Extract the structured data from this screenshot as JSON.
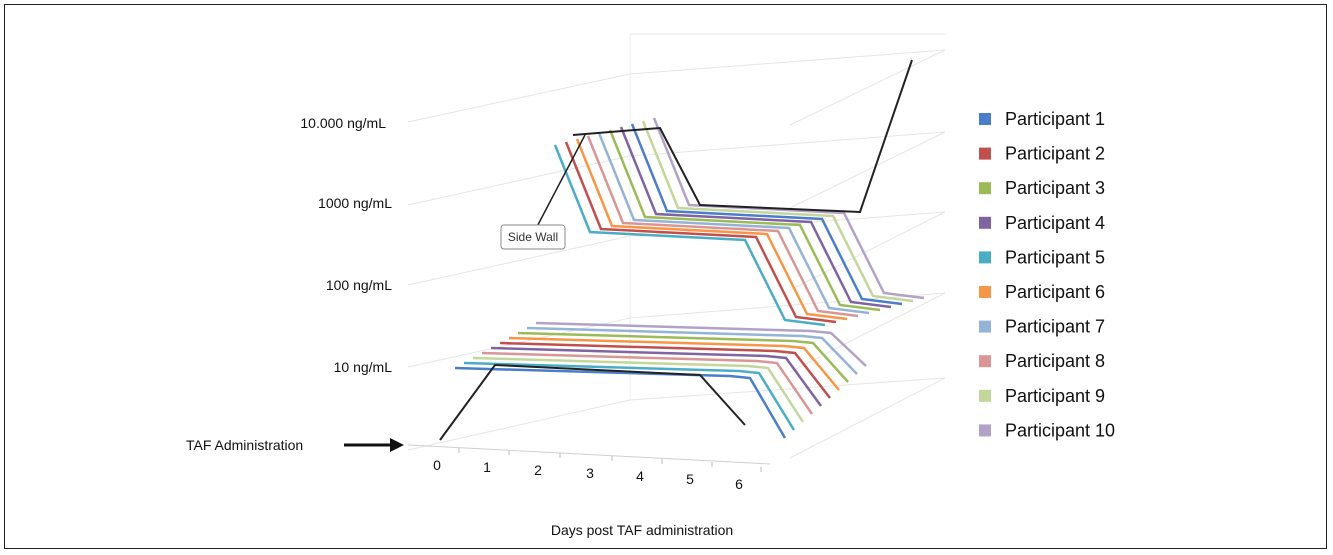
{
  "chart_data": {
    "type": "line",
    "subtype": "3d-line",
    "xlabel": "Days post TAF administration",
    "x": [
      0,
      1,
      2,
      3,
      4,
      5,
      6
    ],
    "y_scale": "log",
    "y_tick_labels": [
      "10 ng/mL",
      "100 ng/mL",
      "1000 ng/mL",
      "10.000 ng/mL"
    ],
    "y_tick_values": [
      10,
      100,
      1000,
      10000
    ],
    "annotations": {
      "arrow_label": "TAF Administration",
      "callout": "Side Wall"
    },
    "legend_position": "right",
    "series": [
      {
        "name": "Participant 1",
        "color": "#4a7ec9",
        "values": [
          1,
          10,
          10,
          10,
          10,
          10,
          1
        ]
      },
      {
        "name": "Participant 2",
        "color": "#c0504d",
        "values": [
          1,
          10,
          10,
          10,
          10,
          10,
          1
        ]
      },
      {
        "name": "Participant 3",
        "color": "#9bbb59",
        "values": [
          1,
          10,
          10,
          10,
          10,
          10,
          1
        ]
      },
      {
        "name": "Participant 4",
        "color": "#8064a2",
        "values": [
          1,
          10,
          10,
          10,
          10,
          10,
          1
        ]
      },
      {
        "name": "Participant 5",
        "color": "#4bacc6",
        "values": [
          1,
          10,
          10,
          10,
          10,
          10,
          1
        ]
      },
      {
        "name": "Participant 6",
        "color": "#f79646",
        "values": [
          1,
          10,
          10,
          10,
          10,
          10,
          1
        ]
      },
      {
        "name": "Participant 7",
        "color": "#95b3d7",
        "values": [
          1,
          10,
          10,
          10,
          10,
          10,
          1
        ]
      },
      {
        "name": "Participant 8",
        "color": "#d99694",
        "values": [
          1,
          10,
          10,
          10,
          10,
          10,
          1
        ]
      },
      {
        "name": "Participant 9",
        "color": "#c3d69b",
        "values": [
          1,
          10,
          10,
          10,
          10,
          10,
          1
        ]
      },
      {
        "name": "Participant 10",
        "color": "#b3a2c7",
        "values": [
          1,
          10,
          10,
          10,
          10,
          10,
          1
        ]
      }
    ]
  }
}
